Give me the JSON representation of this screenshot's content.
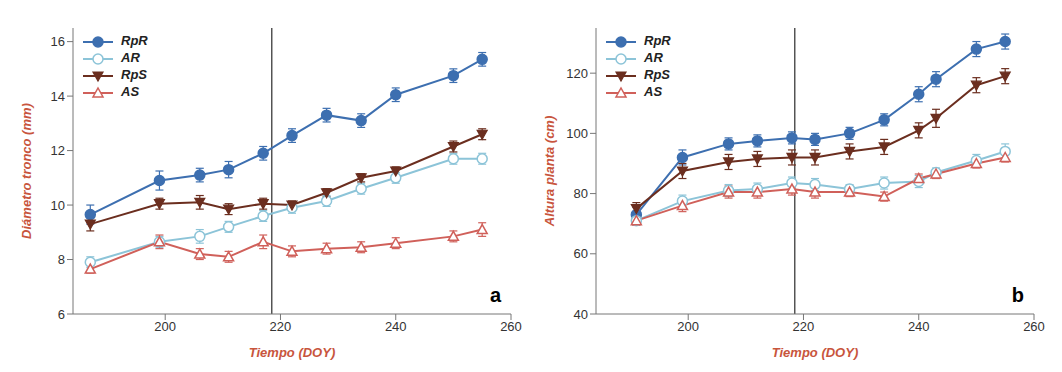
{
  "chart_data": [
    {
      "type": "line",
      "label": "a",
      "x_label": "Tiempo (DOY)",
      "y_label": "Diámetro tronco (mm)",
      "xlim": [
        184,
        260
      ],
      "xticks": [
        200,
        220,
        240,
        260
      ],
      "ylim": [
        6,
        16.5
      ],
      "yticks": [
        6,
        8,
        10,
        12,
        14,
        16
      ],
      "grid": false,
      "legend": "upper left",
      "vline": 218.5,
      "x": [
        187,
        199,
        206,
        211,
        217,
        222,
        228,
        234,
        240,
        250,
        255
      ],
      "series": [
        {
          "name": "RpR",
          "color": "#3d6fb0",
          "marker": "circle",
          "values": [
            9.65,
            10.9,
            11.1,
            11.3,
            11.9,
            12.55,
            13.3,
            13.1,
            14.05,
            14.75,
            15.35
          ],
          "errors": [
            0.35,
            0.35,
            0.25,
            0.3,
            0.25,
            0.25,
            0.25,
            0.25,
            0.25,
            0.25,
            0.25
          ]
        },
        {
          "name": "AR",
          "color": "#8cc4d8",
          "marker": "circle-open",
          "values": [
            7.9,
            8.65,
            8.85,
            9.2,
            9.6,
            9.9,
            10.15,
            10.6,
            11.0,
            11.7,
            11.7
          ],
          "errors": [
            0.2,
            0.2,
            0.25,
            0.2,
            0.2,
            0.2,
            0.2,
            0.2,
            0.2,
            0.2,
            0.2
          ]
        },
        {
          "name": "RpS",
          "color": "#6b2e1f",
          "marker": "triangle-down",
          "values": [
            9.3,
            10.05,
            10.1,
            9.85,
            10.05,
            10.0,
            10.45,
            11.0,
            11.25,
            12.15,
            12.6
          ],
          "errors": [
            0.25,
            0.2,
            0.25,
            0.2,
            0.2,
            0.15,
            0.15,
            0.15,
            0.15,
            0.2,
            0.2
          ]
        },
        {
          "name": "AS",
          "color": "#d0605a",
          "marker": "triangle-open",
          "values": [
            7.65,
            8.65,
            8.2,
            8.1,
            8.65,
            8.3,
            8.4,
            8.45,
            8.6,
            8.85,
            9.1
          ],
          "errors": [
            0.15,
            0.25,
            0.2,
            0.2,
            0.25,
            0.2,
            0.2,
            0.2,
            0.2,
            0.2,
            0.25
          ]
        }
      ]
    },
    {
      "type": "line",
      "label": "b",
      "x_label": "Tiempo (DOY)",
      "y_label": "Altura planta (cm)",
      "xlim": [
        184,
        260
      ],
      "xticks": [
        200,
        220,
        240,
        260
      ],
      "ylim": [
        40,
        135
      ],
      "yticks": [
        40,
        60,
        80,
        100,
        120
      ],
      "grid": false,
      "legend": "upper left",
      "vline": 218.5,
      "x": [
        191,
        199,
        207,
        212,
        218,
        222,
        228,
        234,
        240,
        243,
        250,
        255
      ],
      "series": [
        {
          "name": "RpR",
          "color": "#3d6fb0",
          "marker": "circle",
          "values": [
            73,
            92,
            96.5,
            97.5,
            98.5,
            98,
            100,
            104.5,
            113,
            118,
            128,
            130.5
          ],
          "errors": [
            2.5,
            2.5,
            2,
            2,
            2,
            2,
            2,
            2,
            2.5,
            2.5,
            2.5,
            2.5
          ]
        },
        {
          "name": "AR",
          "color": "#8cc4d8",
          "marker": "circle-open",
          "values": [
            71,
            77.5,
            81,
            81.5,
            83.5,
            83,
            81.5,
            83.5,
            84,
            87,
            91,
            94
          ],
          "errors": [
            1.5,
            2,
            2,
            2,
            2,
            2,
            1.5,
            2,
            2,
            1.5,
            2,
            2.5
          ]
        },
        {
          "name": "RpS",
          "color": "#6b2e1f",
          "marker": "triangle-down",
          "values": [
            75,
            87.5,
            90.5,
            91.5,
            92,
            92,
            94,
            95.5,
            101,
            105,
            116,
            119
          ],
          "errors": [
            2,
            2.5,
            2.5,
            2.5,
            2.5,
            2.5,
            2.5,
            2.5,
            2.5,
            3,
            2.5,
            2.5
          ]
        },
        {
          "name": "AS",
          "color": "#d0605a",
          "marker": "triangle-open",
          "values": [
            71,
            76,
            80.5,
            80.5,
            81.5,
            80.5,
            80.5,
            79,
            85,
            86.5,
            90,
            92
          ],
          "errors": [
            1.5,
            2,
            2,
            2,
            2,
            2,
            1.5,
            1.5,
            1.5,
            1.5,
            1.5,
            1.5
          ]
        }
      ]
    }
  ]
}
